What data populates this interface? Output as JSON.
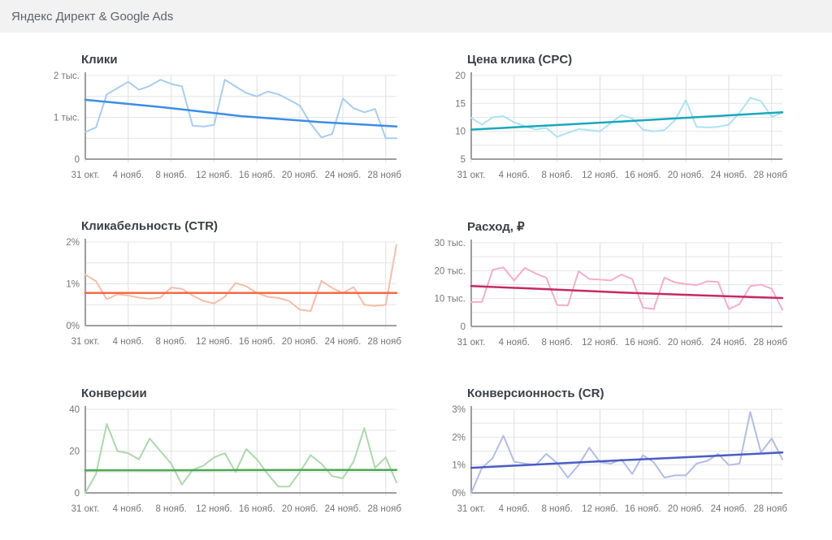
{
  "header": {
    "title": "Яндекс Директ & Google Ads"
  },
  "x_axis": {
    "days_total": 29,
    "tick_days": [
      0,
      4,
      8,
      12,
      16,
      20,
      24,
      28
    ],
    "tick_labels": [
      "31 окт.",
      "4 нояб.",
      "8 нояб.",
      "12 нояб.",
      "16 нояб.",
      "20 нояб.",
      "24 нояб.",
      "28 нояб."
    ]
  },
  "chart_data": [
    {
      "id": "clicks",
      "type": "line",
      "title": "Клики",
      "ymin": 0,
      "ymax": 2000,
      "minor_step": 500,
      "ytick_values": [
        0,
        1000,
        2000
      ],
      "ytick_labels": [
        "0",
        "1 тыс.",
        "2 тыс."
      ],
      "colors": {
        "daily": "#a6cdf2",
        "trend": "#3b8de8"
      },
      "series": [
        {
          "name": "daily",
          "values": [
            650,
            760,
            1550,
            1700,
            1850,
            1660,
            1750,
            1900,
            1800,
            1740,
            800,
            780,
            820,
            1900,
            1740,
            1580,
            1500,
            1620,
            1550,
            1420,
            1280,
            850,
            520,
            600,
            1450,
            1220,
            1120,
            1200,
            500,
            500
          ]
        },
        {
          "name": "trend",
          "values": [
            1420,
            1240,
            1030,
            890,
            780
          ]
        }
      ]
    },
    {
      "id": "cpc",
      "type": "line",
      "title": "Цена клика (CPC)",
      "ymin": 5,
      "ymax": 20,
      "minor_step": 2.5,
      "ytick_values": [
        5,
        10,
        15,
        20
      ],
      "ytick_labels": [
        "5",
        "10",
        "15",
        "20"
      ],
      "colors": {
        "daily": "#abe4f0",
        "trend": "#18a8bd"
      },
      "series": [
        {
          "name": "daily",
          "values": [
            12.4,
            11.2,
            12.5,
            12.7,
            11.6,
            10.9,
            10.3,
            10.6,
            9.0,
            9.7,
            10.4,
            10.2,
            10.0,
            11.5,
            12.9,
            12.3,
            10.3,
            10.0,
            10.2,
            12.0,
            15.6,
            10.8,
            10.7,
            10.8,
            11.2,
            13.3,
            16.0,
            15.4,
            12.6,
            13.3
          ]
        },
        {
          "name": "trend",
          "values": [
            10.3,
            11.05,
            11.8,
            12.6,
            13.4
          ]
        }
      ]
    },
    {
      "id": "ctr",
      "type": "line",
      "title": "Кликабельность (CTR)",
      "ymin": 0,
      "ymax": 2,
      "minor_step": 0.5,
      "ytick_values": [
        0,
        1,
        2
      ],
      "ytick_labels": [
        "0%",
        "1%",
        "2%"
      ],
      "colors": {
        "daily": "#f9bda6",
        "trend": "#f46a45"
      },
      "series": [
        {
          "name": "daily",
          "values": [
            1.22,
            1.06,
            0.63,
            0.75,
            0.72,
            0.67,
            0.64,
            0.67,
            0.91,
            0.88,
            0.72,
            0.59,
            0.53,
            0.69,
            1.02,
            0.94,
            0.78,
            0.69,
            0.66,
            0.59,
            0.38,
            0.35,
            1.07,
            0.9,
            0.78,
            0.92,
            0.5,
            0.47,
            0.5,
            1.93
          ]
        },
        {
          "name": "trend",
          "values": [
            0.78,
            0.78,
            0.78,
            0.78,
            0.78
          ]
        }
      ]
    },
    {
      "id": "cost",
      "type": "line",
      "title": "Расход, ₽",
      "ymin": 0,
      "ymax": 30000,
      "minor_step": 5000,
      "ytick_values": [
        0,
        10000,
        20000,
        30000
      ],
      "ytick_labels": [
        "0",
        "10 тыс.",
        "20 тыс.",
        "30 тыс."
      ],
      "colors": {
        "daily": "#f7adc5",
        "trend": "#c42a63"
      },
      "series": [
        {
          "name": "daily",
          "values": [
            8700,
            8800,
            20300,
            21200,
            16500,
            21000,
            19000,
            17500,
            7700,
            7500,
            19800,
            17000,
            16800,
            16500,
            18600,
            17000,
            6800,
            6200,
            17500,
            15800,
            15200,
            14800,
            16200,
            16000,
            6200,
            8000,
            14500,
            15000,
            13500,
            6000
          ]
        },
        {
          "name": "trend",
          "values": [
            14500,
            13300,
            12100,
            11100,
            10200
          ]
        }
      ]
    },
    {
      "id": "conversions",
      "type": "line",
      "title": "Конверсии",
      "ymin": 0,
      "ymax": 40,
      "minor_step": 10,
      "ytick_values": [
        0,
        20,
        40
      ],
      "ytick_labels": [
        "0",
        "20",
        "40"
      ],
      "colors": {
        "daily": "#abd9ab",
        "trend": "#4aab50"
      },
      "series": [
        {
          "name": "daily",
          "values": [
            0,
            9,
            33,
            20,
            19,
            16,
            26,
            20,
            14,
            4,
            11,
            13,
            17,
            19,
            10,
            21,
            16,
            9,
            3,
            3,
            10,
            18,
            14,
            8,
            7,
            15,
            31,
            12,
            17,
            5
          ]
        },
        {
          "name": "trend",
          "values": [
            10.8,
            10.85,
            10.9,
            10.95,
            11
          ]
        }
      ]
    },
    {
      "id": "cr",
      "type": "line",
      "title": "Конверсионность (CR)",
      "ymin": 0,
      "ymax": 3,
      "minor_step": 0.5,
      "ytick_values": [
        0,
        1,
        2,
        3
      ],
      "ytick_labels": [
        "0%",
        "1%",
        "2%",
        "3%"
      ],
      "colors": {
        "daily": "#b3bce9",
        "trend": "#4a5cc5"
      },
      "series": [
        {
          "name": "daily",
          "values": [
            0,
            0.9,
            1.25,
            2.05,
            1.12,
            1.05,
            1.0,
            1.4,
            1.07,
            0.55,
            1.0,
            1.62,
            1.1,
            1.05,
            1.2,
            0.68,
            1.35,
            1.1,
            0.55,
            0.63,
            0.63,
            1.05,
            1.15,
            1.4,
            1.0,
            1.05,
            2.9,
            1.45,
            1.95,
            1.2
          ]
        },
        {
          "name": "trend",
          "values": [
            0.9,
            1.04,
            1.18,
            1.31,
            1.45
          ]
        }
      ]
    }
  ]
}
